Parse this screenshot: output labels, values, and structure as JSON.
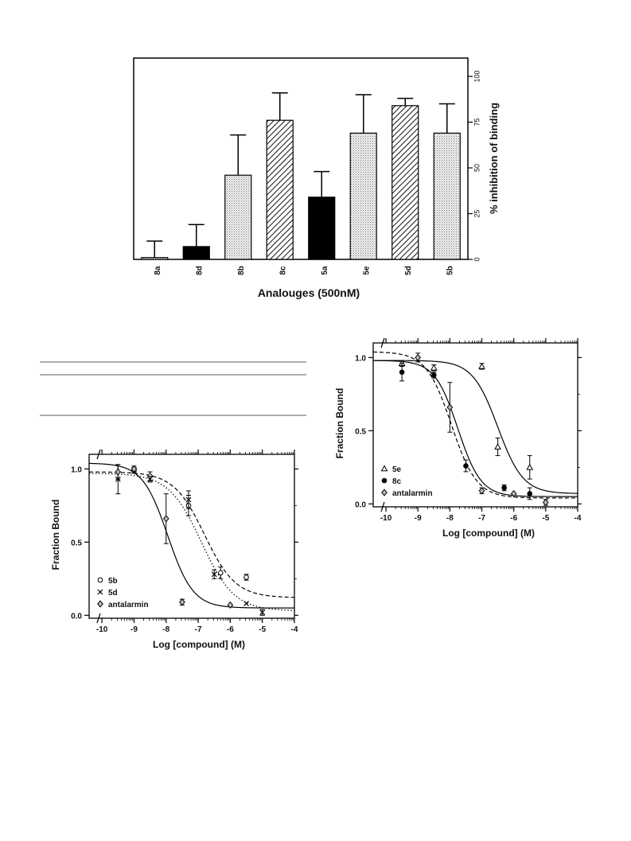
{
  "chart_data": [
    {
      "type": "bar",
      "xlabel": "Analouges (500nM)",
      "ylabel": "% inhibition of binding",
      "ylim": [
        0,
        110
      ],
      "yticks": [
        0,
        25,
        50,
        75,
        100
      ],
      "categories": [
        "8a",
        "8d",
        "8b",
        "8c",
        "5a",
        "5e",
        "5d",
        "5b"
      ],
      "values": [
        1,
        7,
        46,
        76,
        34,
        69,
        84,
        69
      ],
      "errors": [
        9,
        12,
        22,
        15,
        14,
        21,
        4,
        16
      ],
      "patterns": [
        "dots",
        "solid",
        "dots",
        "hatch",
        "solid",
        "dots",
        "hatch",
        "dots"
      ],
      "y_axis_side": "right"
    },
    {
      "type": "scatter",
      "xlabel": "Log [compound] (M)",
      "ylabel": "Fraction Bound",
      "xlim": [
        -10.4,
        -4
      ],
      "ylim": [
        -0.02,
        1.1
      ],
      "xticks": [
        -10,
        -9,
        -8,
        -7,
        -6,
        -5,
        -4
      ],
      "yticks": [
        0.0,
        0.5,
        1.0
      ],
      "ytick_labels": [
        "0.0",
        "0.5",
        "1.0"
      ],
      "legend_position": "bottom-left",
      "series": [
        {
          "name": "5b",
          "marker": "open-circle",
          "points": [
            {
              "x": -9.0,
              "y": 0.99,
              "err": 0.02
            },
            {
              "x": -8.5,
              "y": 0.95,
              "err": 0.03
            },
            {
              "x": -7.3,
              "y": 0.75,
              "err": 0.07
            },
            {
              "x": -6.3,
              "y": 0.29,
              "err": 0.04
            },
            {
              "x": -5.5,
              "y": 0.26,
              "err": 0.02
            }
          ],
          "fit": {
            "top": 0.98,
            "bottom": 0.12,
            "logIC50": -6.8,
            "hill": 0.9,
            "style": "dashed"
          }
        },
        {
          "name": "5d",
          "marker": "cross",
          "points": [
            {
              "x": -9.5,
              "y": 0.93,
              "err": 0.1
            },
            {
              "x": -8.5,
              "y": 0.93,
              "err": 0.02
            },
            {
              "x": -7.3,
              "y": 0.79,
              "err": 0.06
            },
            {
              "x": -6.5,
              "y": 0.28,
              "err": 0.03
            },
            {
              "x": -5.5,
              "y": 0.08,
              "err": 0.0
            },
            {
              "x": -5.0,
              "y": 0.02,
              "err": 0.02
            }
          ],
          "fit": {
            "top": 0.97,
            "bottom": 0.03,
            "logIC50": -6.9,
            "hill": 0.85,
            "style": "dotted"
          }
        },
        {
          "name": "antalarmin",
          "marker": "diamond",
          "points": [
            {
              "x": -9.5,
              "y": 0.98,
              "err": 0.05
            },
            {
              "x": -9.0,
              "y": 1.0,
              "err": 0.02
            },
            {
              "x": -8.0,
              "y": 0.66,
              "err": 0.17
            },
            {
              "x": -7.5,
              "y": 0.09,
              "err": 0.02
            },
            {
              "x": -6.0,
              "y": 0.07,
              "err": 0.0
            }
          ],
          "fit": {
            "top": 1.04,
            "bottom": 0.05,
            "logIC50": -7.95,
            "hill": 1.1,
            "style": "solid"
          }
        }
      ]
    },
    {
      "type": "scatter",
      "xlabel": "Log [compound] (M)",
      "ylabel": "Fraction Bound",
      "xlim": [
        -10.4,
        -4
      ],
      "ylim": [
        -0.02,
        1.1
      ],
      "xticks": [
        -10,
        -9,
        -8,
        -7,
        -6,
        -5,
        -4
      ],
      "yticks": [
        0.0,
        0.5,
        1.0
      ],
      "ytick_labels": [
        "0.0",
        "0.5",
        "1.0"
      ],
      "legend_position": "bottom-left",
      "series": [
        {
          "name": "5e",
          "marker": "open-triangle",
          "points": [
            {
              "x": -9.5,
              "y": 0.96,
              "err": 0.02
            },
            {
              "x": -8.5,
              "y": 0.93,
              "err": 0.02
            },
            {
              "x": -7.0,
              "y": 0.94,
              "err": 0.02
            },
            {
              "x": -6.5,
              "y": 0.39,
              "err": 0.06
            },
            {
              "x": -5.5,
              "y": 0.25,
              "err": 0.08
            }
          ],
          "fit": {
            "top": 0.98,
            "bottom": 0.07,
            "logIC50": -6.5,
            "hill": 1.1,
            "style": "solid"
          }
        },
        {
          "name": "8c",
          "marker": "filled-circle",
          "points": [
            {
              "x": -9.5,
              "y": 0.9,
              "err": 0.06
            },
            {
              "x": -8.5,
              "y": 0.88,
              "err": 0.02
            },
            {
              "x": -7.5,
              "y": 0.26,
              "err": 0.04
            },
            {
              "x": -6.3,
              "y": 0.11,
              "err": 0.02
            },
            {
              "x": -5.5,
              "y": 0.07,
              "err": 0.04
            }
          ],
          "fit": {
            "top": 0.98,
            "bottom": 0.05,
            "logIC50": -7.75,
            "hill": 1.2,
            "style": "solid"
          }
        },
        {
          "name": "antalarmin",
          "marker": "diamond",
          "points": [
            {
              "x": -9.0,
              "y": 1.0,
              "err": 0.03
            },
            {
              "x": -8.0,
              "y": 0.66,
              "err": 0.17
            },
            {
              "x": -7.0,
              "y": 0.09,
              "err": 0.02
            },
            {
              "x": -6.0,
              "y": 0.07,
              "err": 0.0
            },
            {
              "x": -5.0,
              "y": 0.01,
              "err": 0.02
            }
          ],
          "fit": {
            "top": 1.04,
            "bottom": 0.04,
            "logIC50": -7.95,
            "hill": 1.1,
            "style": "dashed"
          }
        }
      ]
    }
  ]
}
